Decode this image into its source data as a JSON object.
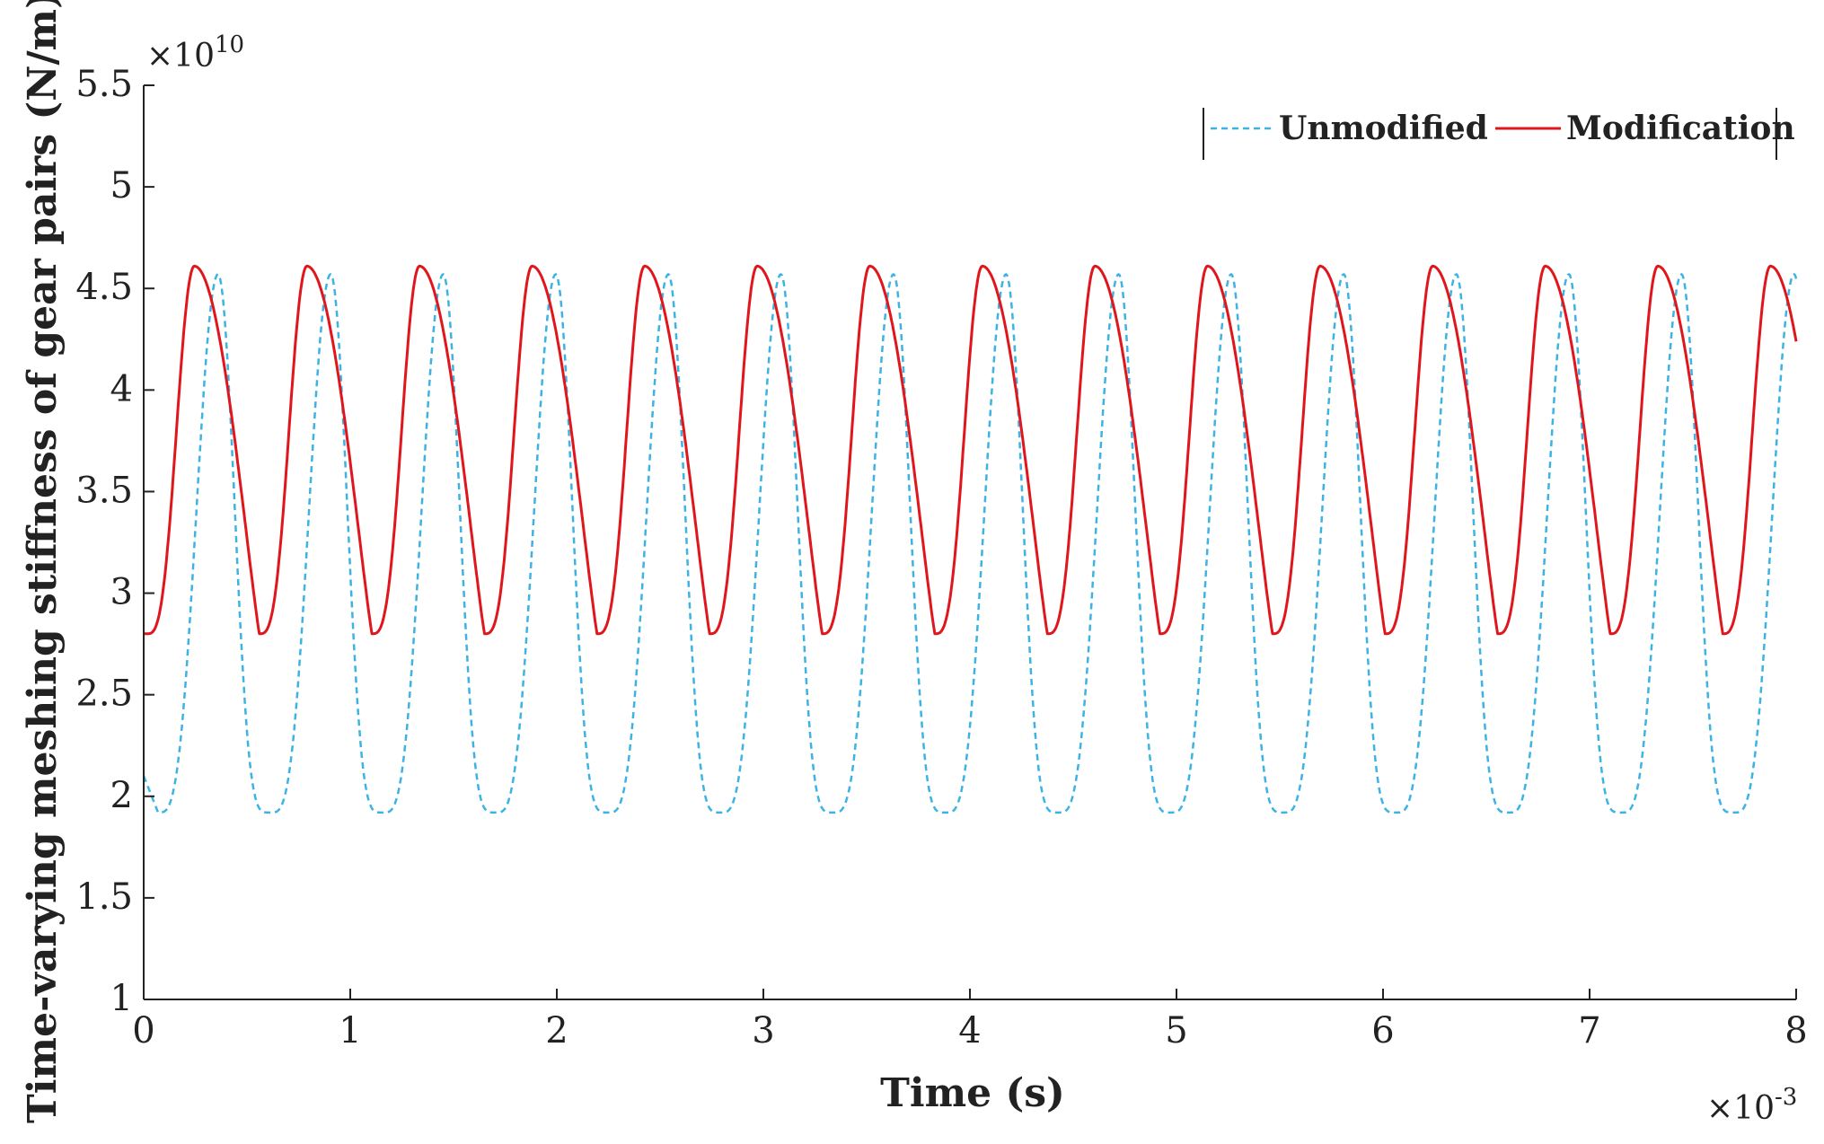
{
  "chart_data": {
    "type": "line",
    "title": "",
    "xlabel": "Time (s)",
    "ylabel": "Time-varying meshing stiffness of gear pairs (N/m)",
    "x_exponent_label": "×10",
    "x_exponent_power": "-3",
    "y_exponent_label": "×10",
    "y_exponent_power": "10",
    "xlim": [
      0,
      8
    ],
    "ylim": [
      1,
      5.5
    ],
    "x_ticks": [
      0,
      1,
      2,
      3,
      4,
      5,
      6,
      7,
      8
    ],
    "x_tick_labels": [
      "0",
      "1",
      "2",
      "3",
      "4",
      "5",
      "6",
      "7",
      "8"
    ],
    "y_ticks": [
      1,
      1.5,
      2,
      2.5,
      3,
      3.5,
      4,
      4.5,
      5,
      5.5
    ],
    "y_tick_labels": [
      "1",
      "1.5",
      "2",
      "2.5",
      "3",
      "3.5",
      "4",
      "4.5",
      "5",
      "5.5"
    ],
    "grid": false,
    "legend_position": "top-right",
    "series": [
      {
        "name": "Unmodified",
        "color": "#3db3e3",
        "style": "dashed",
        "period": 0.545,
        "phase_min": 0.07,
        "phase_max": 0.36,
        "min": 1.92,
        "max": 4.57,
        "start_value": 2.1,
        "shape_up": 1.7,
        "shape_down": 2.2
      },
      {
        "name": "Modification",
        "color": "#e0161d",
        "style": "solid",
        "period": 0.545,
        "phase_min": 0.015,
        "phase_max": 0.245,
        "min": 2.8,
        "max": 4.61,
        "start_value": 2.8,
        "shape_up": 1.6,
        "shape_down": 0.55
      }
    ]
  }
}
